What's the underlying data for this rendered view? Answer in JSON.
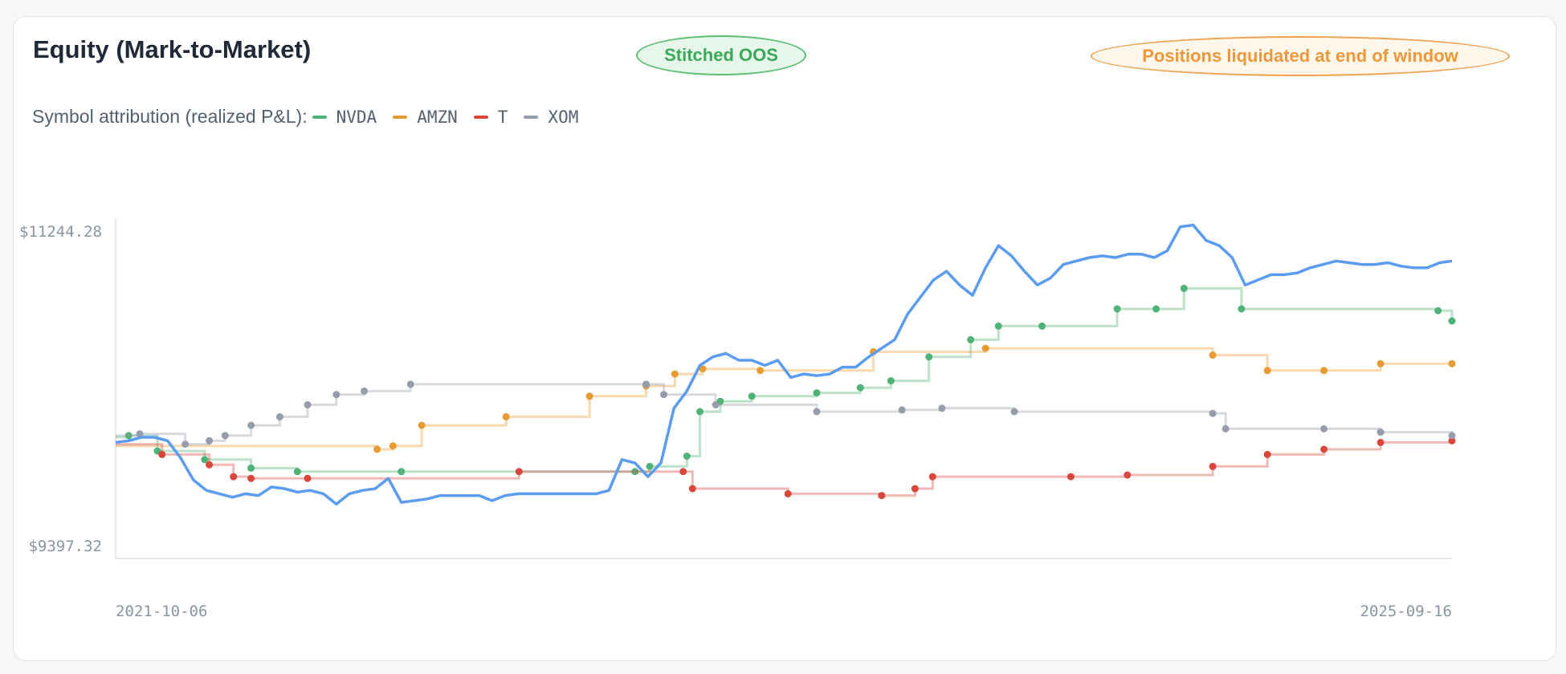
{
  "header": {
    "title": "Equity (Mark-to-Market)",
    "badge_oos": "Stitched OOS",
    "badge_liquidated": "Positions liquidated at end of window"
  },
  "legend": {
    "intro": "Symbol attribution (realized P&L):",
    "items": [
      {
        "label": "NVDA",
        "color": "#4fb277"
      },
      {
        "label": "AMZN",
        "color": "#e89b32"
      },
      {
        "label": "T",
        "color": "#d9463c"
      },
      {
        "label": "XOM",
        "color": "#959cab"
      }
    ]
  },
  "chart_data": {
    "type": "line",
    "ylabel": "",
    "y_tick_labels": [
      "$11244.28",
      "$9397.32"
    ],
    "ylim": [
      9397.32,
      11244.28
    ],
    "x_tick_labels": [
      "2021-10-06",
      "2025-09-16"
    ],
    "xlim": [
      "2021-10-06",
      "2025-09-16"
    ],
    "colors": {
      "equity": "#5b9cf0",
      "NVDA": "#4fb277",
      "AMZN": "#e89b32",
      "T": "#d9463c",
      "XOM": "#959cab"
    },
    "equity": {
      "x": [
        "2021-10-06",
        "2021-10-20",
        "2021-11-03",
        "2021-11-17",
        "2021-12-01",
        "2021-12-15",
        "2021-12-29",
        "2022-01-12",
        "2022-01-26",
        "2022-02-09",
        "2022-02-23",
        "2022-03-09",
        "2022-03-23",
        "2022-04-06",
        "2022-04-20",
        "2022-05-04",
        "2022-05-18",
        "2022-06-01",
        "2022-06-15",
        "2022-06-29",
        "2022-07-13",
        "2022-07-27",
        "2022-08-10",
        "2022-08-24",
        "2022-09-07",
        "2022-09-21",
        "2022-10-05",
        "2022-10-19",
        "2022-11-02",
        "2022-11-16",
        "2022-11-30",
        "2022-12-14",
        "2022-12-28",
        "2023-01-11",
        "2023-01-25",
        "2023-02-08",
        "2023-02-22",
        "2023-03-08",
        "2023-03-22",
        "2023-04-05",
        "2023-04-19",
        "2023-05-03",
        "2023-05-17",
        "2023-05-31",
        "2023-06-14",
        "2023-06-28",
        "2023-07-12",
        "2023-07-26",
        "2023-08-09",
        "2023-08-23",
        "2023-09-06",
        "2023-09-20",
        "2023-10-04",
        "2023-10-18",
        "2023-11-01",
        "2023-11-15",
        "2023-11-29",
        "2023-12-13",
        "2023-12-27",
        "2024-01-10",
        "2024-01-24",
        "2024-02-07",
        "2024-02-21",
        "2024-03-06",
        "2024-03-20",
        "2024-04-03",
        "2024-04-17",
        "2024-05-01",
        "2024-05-15",
        "2024-05-29",
        "2024-06-12",
        "2024-06-26",
        "2024-07-10",
        "2024-07-24",
        "2024-08-07",
        "2024-08-21",
        "2024-09-04",
        "2024-09-18",
        "2024-10-02",
        "2024-10-16",
        "2024-10-30",
        "2024-11-13",
        "2024-11-27",
        "2024-12-11",
        "2024-12-25",
        "2025-01-08",
        "2025-01-22",
        "2025-02-05",
        "2025-02-19",
        "2025-03-05",
        "2025-03-19",
        "2025-04-02",
        "2025-04-16",
        "2025-04-30",
        "2025-05-14",
        "2025-05-28",
        "2025-06-11",
        "2025-06-25",
        "2025-07-09",
        "2025-07-23",
        "2025-08-06",
        "2025-08-20",
        "2025-09-03",
        "2025-09-16"
      ],
      "y": [
        10000,
        10010,
        10030,
        10030,
        10010,
        9910,
        9780,
        9720,
        9700,
        9680,
        9700,
        9690,
        9740,
        9730,
        9710,
        9720,
        9700,
        9640,
        9700,
        9720,
        9730,
        9790,
        9650,
        9660,
        9670,
        9690,
        9690,
        9690,
        9690,
        9660,
        9690,
        9700,
        9700,
        9700,
        9700,
        9700,
        9700,
        9700,
        9720,
        9900,
        9880,
        9800,
        9880,
        10200,
        10300,
        10450,
        10500,
        10520,
        10480,
        10480,
        10450,
        10480,
        10380,
        10400,
        10390,
        10400,
        10440,
        10440,
        10500,
        10550,
        10600,
        10750,
        10850,
        10950,
        11000,
        10920,
        10860,
        11020,
        11150,
        11090,
        11000,
        10920,
        10960,
        11040,
        11060,
        11080,
        11090,
        11080,
        11100,
        11100,
        11080,
        11120,
        11260,
        11270,
        11180,
        11150,
        11080,
        10920,
        10950,
        10980,
        10980,
        10990,
        11020,
        11040,
        11060,
        11050,
        11040,
        11040,
        11050,
        11030,
        11020,
        11020,
        11050,
        11060
      ]
    },
    "series": [
      {
        "name": "NVDA",
        "x": [
          "2021-10-06",
          "2021-10-20",
          "2021-11-20",
          "2022-01-10",
          "2022-03-01",
          "2022-04-20",
          "2022-08-10",
          "2023-04-19",
          "2023-05-05",
          "2023-06-14",
          "2023-06-28",
          "2023-07-20",
          "2023-08-23",
          "2023-11-01",
          "2023-12-18",
          "2024-01-20",
          "2024-03-01",
          "2024-04-15",
          "2024-05-15",
          "2024-07-01",
          "2024-09-20",
          "2024-11-01",
          "2024-12-01",
          "2025-02-01",
          "2025-09-01",
          "2025-09-16"
        ],
        "y": [
          10030,
          10040,
          9950,
          9900,
          9850,
          9830,
          9830,
          9830,
          9860,
          9920,
          10180,
          10240,
          10270,
          10290,
          10320,
          10360,
          10500,
          10600,
          10680,
          10680,
          10780,
          10780,
          10900,
          10780,
          10770,
          10710
        ]
      },
      {
        "name": "AMZN",
        "x": [
          "2021-10-06",
          "2022-07-15",
          "2022-08-01",
          "2022-09-01",
          "2022-12-01",
          "2023-03-01",
          "2023-05-01",
          "2023-06-01",
          "2023-07-01",
          "2023-09-01",
          "2024-01-01",
          "2024-05-01",
          "2025-01-01",
          "2025-03-01",
          "2025-05-01",
          "2025-07-01",
          "2025-09-16"
        ],
        "y": [
          9980,
          9960,
          9980,
          10100,
          10150,
          10270,
          10330,
          10400,
          10430,
          10420,
          10530,
          10550,
          10510,
          10420,
          10420,
          10460,
          10460
        ]
      },
      {
        "name": "T",
        "x": [
          "2021-10-06",
          "2021-11-25",
          "2022-01-15",
          "2022-02-10",
          "2022-03-01",
          "2022-05-01",
          "2022-12-15",
          "2023-06-10",
          "2023-06-20",
          "2023-10-01",
          "2024-01-10",
          "2024-02-15",
          "2024-03-05",
          "2024-08-01",
          "2024-10-01",
          "2025-01-01",
          "2025-03-01",
          "2025-05-01",
          "2025-07-01",
          "2025-09-16"
        ],
        "y": [
          9990,
          9930,
          9870,
          9800,
          9790,
          9790,
          9830,
          9830,
          9730,
          9700,
          9690,
          9730,
          9800,
          9800,
          9810,
          9860,
          9930,
          9960,
          10000,
          10010
        ]
      },
      {
        "name": "XOM",
        "x": [
          "2021-10-06",
          "2021-11-01",
          "2021-12-20",
          "2022-01-15",
          "2022-02-01",
          "2022-03-01",
          "2022-04-01",
          "2022-05-01",
          "2022-06-01",
          "2022-07-01",
          "2022-08-20",
          "2023-05-01",
          "2023-05-20",
          "2023-07-15",
          "2023-11-01",
          "2024-02-01",
          "2024-03-15",
          "2024-06-01",
          "2025-01-01",
          "2025-01-15",
          "2025-05-01",
          "2025-07-01",
          "2025-09-16"
        ],
        "y": [
          10040,
          10050,
          9990,
          10010,
          10040,
          10100,
          10150,
          10220,
          10280,
          10300,
          10340,
          10340,
          10280,
          10220,
          10180,
          10190,
          10200,
          10180,
          10170,
          10080,
          10080,
          10060,
          10040
        ]
      }
    ],
    "grid": false,
    "legend_position": "top-left"
  }
}
